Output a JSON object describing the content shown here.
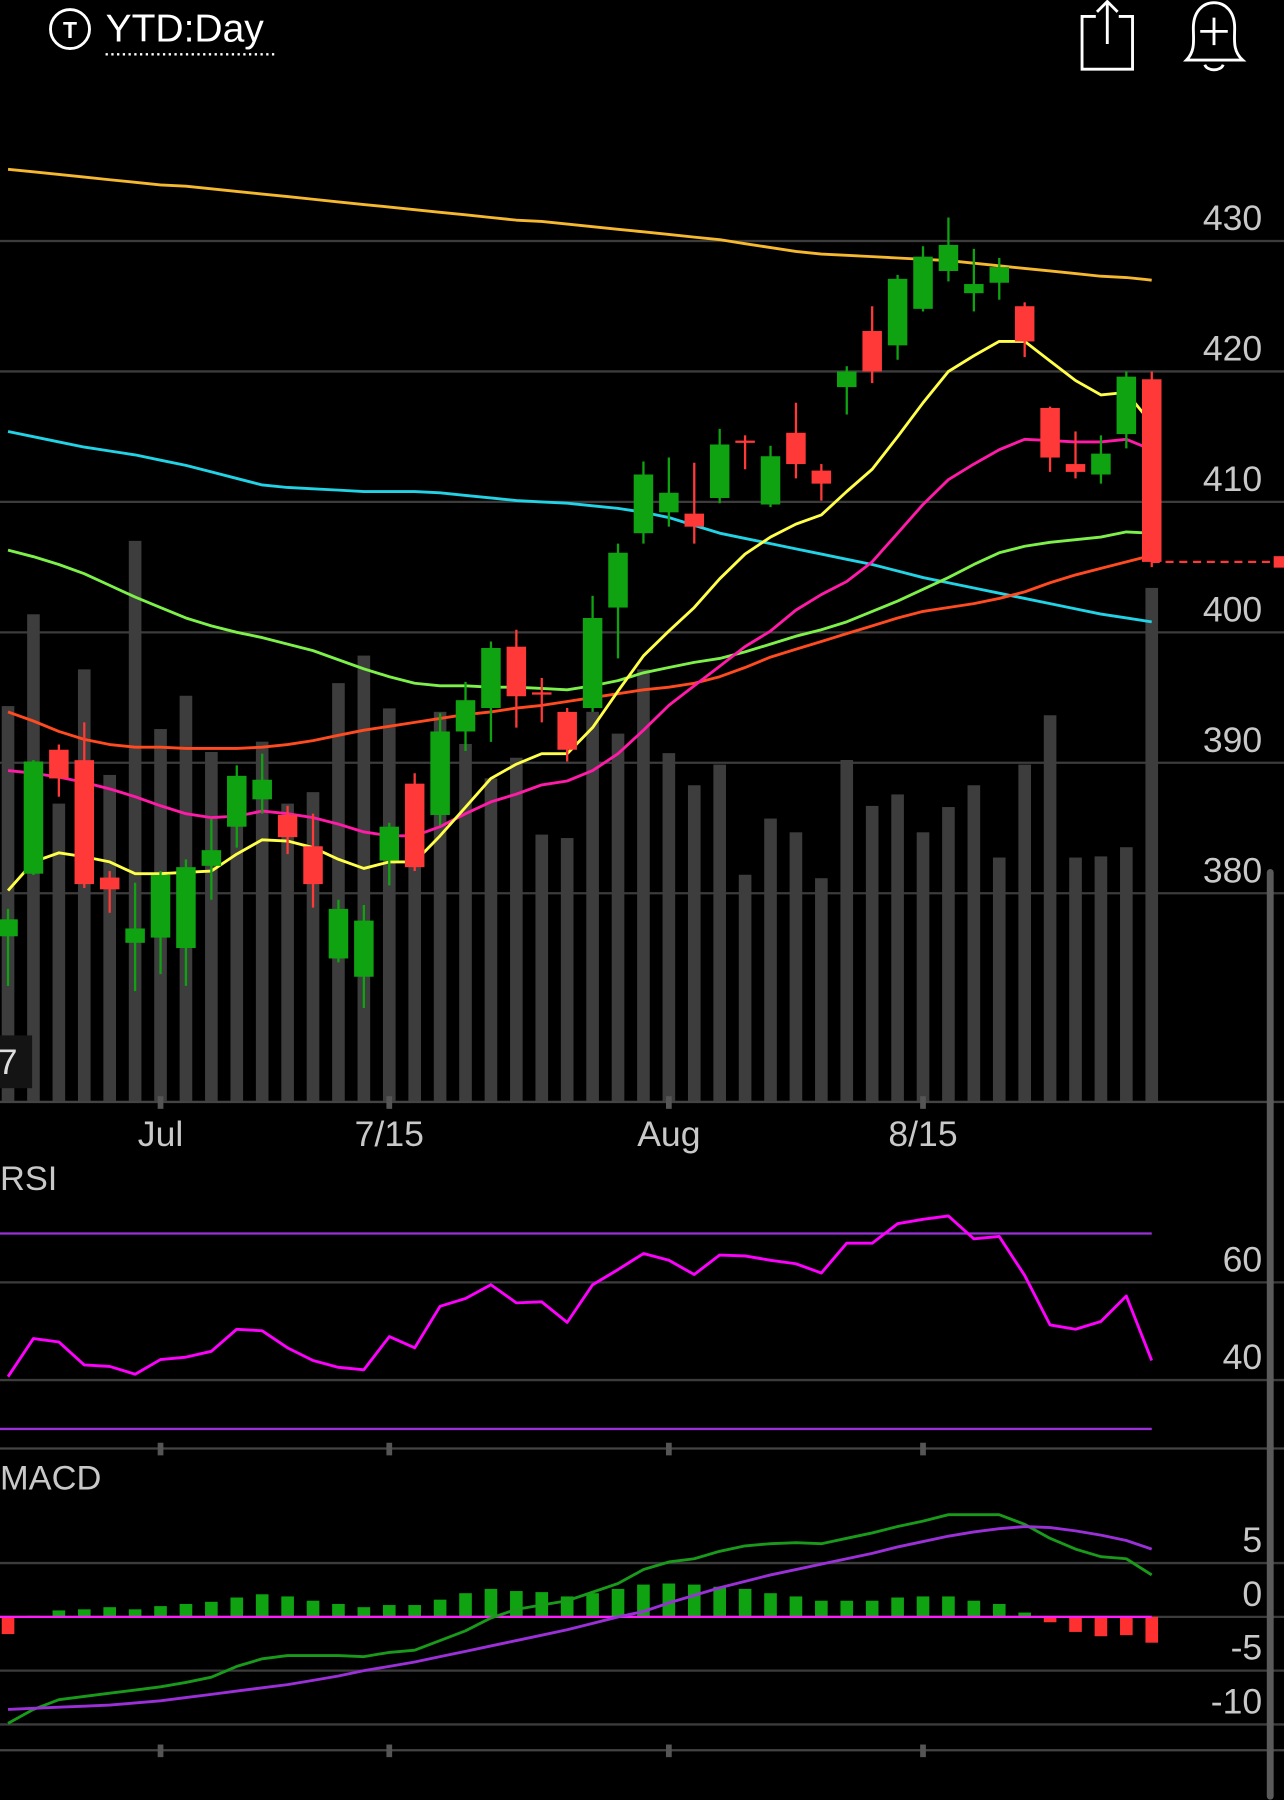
{
  "header": {
    "icon_letter": "T",
    "title": "YTD:Day"
  },
  "chart_data": [
    {
      "type": "candlestick",
      "categories": [
        null,
        null,
        null,
        null,
        null,
        null,
        "Jul",
        null,
        null,
        null,
        null,
        null,
        null,
        null,
        null,
        "7/15",
        null,
        null,
        null,
        null,
        null,
        null,
        null,
        null,
        null,
        null,
        "Aug",
        null,
        null,
        null,
        null,
        null,
        null,
        null,
        null,
        null,
        "8/15",
        null,
        null,
        null,
        null,
        null,
        null,
        null,
        null,
        null
      ],
      "open": [
        376.7,
        381.5,
        391.0,
        390.2,
        381.2,
        376.2,
        376.6,
        375.8,
        382.1,
        385.1,
        387.2,
        386.0,
        383.6,
        375.0,
        373.6,
        382.5,
        388.4,
        386.0,
        392.4,
        394.2,
        398.9,
        395.4,
        393.9,
        394.2,
        401.9,
        407.6,
        409.2,
        409.1,
        410.3,
        414.7,
        409.8,
        415.3,
        412.4,
        418.8,
        423.1,
        422.0,
        424.8,
        427.7,
        426.0,
        426.8,
        425.0,
        417.2,
        412.9,
        412.1,
        415.2,
        419.4
      ],
      "high": [
        378.8,
        390.2,
        391.4,
        393.1,
        381.7,
        380.8,
        381.7,
        382.6,
        385.7,
        389.8,
        390.7,
        386.7,
        386.1,
        379.5,
        379.1,
        385.4,
        389.2,
        393.8,
        396.2,
        399.3,
        400.2,
        396.5,
        394.2,
        402.8,
        406.8,
        413.1,
        413.4,
        413.0,
        415.6,
        415.1,
        414.3,
        417.6,
        412.9,
        420.4,
        425.0,
        427.4,
        429.6,
        431.8,
        429.4,
        428.7,
        425.3,
        417.3,
        415.4,
        415.1,
        420.0,
        420.0
      ],
      "low": [
        372.9,
        381.4,
        387.4,
        380.4,
        378.5,
        372.5,
        373.8,
        372.9,
        379.5,
        383.5,
        386.1,
        383.0,
        378.9,
        374.7,
        371.2,
        380.6,
        381.7,
        385.2,
        390.9,
        391.6,
        392.7,
        393.1,
        390.1,
        393.9,
        398.0,
        406.8,
        408.1,
        406.8,
        409.9,
        412.5,
        409.6,
        411.8,
        410.1,
        416.7,
        419.1,
        420.9,
        424.6,
        426.9,
        424.6,
        425.5,
        421.1,
        412.3,
        411.8,
        411.4,
        414.1,
        405.0
      ],
      "close": [
        378.0,
        390.1,
        388.8,
        380.7,
        380.3,
        377.3,
        381.4,
        382.0,
        383.3,
        389.0,
        388.7,
        384.3,
        380.7,
        378.8,
        377.9,
        385.1,
        382.0,
        392.4,
        394.8,
        398.8,
        395.1,
        395.3,
        391.0,
        401.1,
        406.1,
        412.1,
        410.7,
        408.1,
        414.4,
        414.6,
        413.5,
        412.9,
        411.4,
        420.0,
        420.0,
        427.1,
        428.8,
        429.7,
        426.7,
        428.0,
        422.3,
        413.4,
        412.3,
        413.7,
        419.6,
        405.4
      ],
      "volume": [
        345,
        425,
        260,
        377,
        285,
        489,
        325,
        354,
        305,
        260,
        314,
        260,
        270,
        365,
        389,
        343,
        240,
        340,
        312,
        282,
        300,
        233,
        230,
        340,
        321,
        377,
        304,
        276,
        294,
        198,
        247,
        235,
        195,
        298,
        258,
        268,
        235,
        257,
        276,
        213,
        294,
        337,
        213,
        214,
        222,
        448
      ],
      "up_color": "#0fa312",
      "down_color": "#ff3838",
      "volume_color": "#3d3d3d",
      "series": [
        {
          "color": "#f5b82e",
          "values": [
            435.5,
            435.3,
            435.1,
            434.9,
            434.7,
            434.5,
            434.3,
            434.2,
            434.0,
            433.8,
            433.6,
            433.4,
            433.2,
            433.0,
            432.8,
            432.6,
            432.4,
            432.2,
            432.0,
            431.8,
            431.6,
            431.5,
            431.3,
            431.1,
            430.9,
            430.7,
            430.5,
            430.3,
            430.1,
            429.8,
            429.5,
            429.2,
            429.0,
            428.9,
            428.8,
            428.7,
            428.6,
            428.5,
            428.3,
            428.1,
            427.9,
            427.7,
            427.5,
            427.3,
            427.2,
            427.0
          ]
        },
        {
          "color": "#22d3e6",
          "values": [
            415.4,
            415.0,
            414.6,
            414.2,
            413.9,
            413.6,
            413.2,
            412.8,
            412.3,
            411.8,
            411.3,
            411.1,
            411.0,
            410.9,
            410.8,
            410.8,
            410.8,
            410.7,
            410.5,
            410.3,
            410.1,
            410.0,
            409.9,
            409.7,
            409.5,
            409.2,
            408.8,
            408.2,
            407.6,
            407.2,
            406.8,
            406.4,
            406.0,
            405.6,
            405.2,
            404.7,
            404.2,
            403.8,
            403.4,
            403.0,
            402.6,
            402.2,
            401.8,
            401.4,
            401.1,
            400.8
          ]
        },
        {
          "color": "#7ef04a",
          "values": [
            406.3,
            405.8,
            405.2,
            404.5,
            403.6,
            402.7,
            401.9,
            401.1,
            400.5,
            400.0,
            399.6,
            399.1,
            398.6,
            397.9,
            397.2,
            396.6,
            396.1,
            395.9,
            395.9,
            395.8,
            395.8,
            395.7,
            395.6,
            395.9,
            396.3,
            396.9,
            397.3,
            397.7,
            398.0,
            398.5,
            399.1,
            399.7,
            400.2,
            400.8,
            401.6,
            402.4,
            403.3,
            404.2,
            405.2,
            406.1,
            406.6,
            406.9,
            407.1,
            407.3,
            407.7,
            407.6
          ]
        },
        {
          "color": "#ff4b1f",
          "values": [
            393.9,
            393.2,
            392.4,
            391.8,
            391.4,
            391.2,
            391.2,
            391.1,
            391.1,
            391.1,
            391.2,
            391.4,
            391.7,
            392.1,
            392.5,
            392.8,
            393.1,
            393.4,
            393.7,
            393.9,
            394.2,
            394.4,
            394.7,
            395.0,
            395.3,
            395.6,
            395.8,
            396.1,
            396.6,
            397.3,
            398.1,
            398.7,
            399.3,
            399.9,
            400.5,
            401.1,
            401.6,
            401.9,
            402.2,
            402.6,
            403.1,
            403.8,
            404.4,
            404.9,
            405.4,
            405.9
          ]
        },
        {
          "color": "#ff1aa8",
          "values": [
            389.4,
            389.2,
            388.9,
            388.5,
            388.0,
            387.4,
            386.7,
            386.1,
            385.8,
            385.9,
            386.3,
            386.1,
            385.8,
            385.3,
            384.7,
            384.4,
            384.4,
            385.1,
            386.1,
            387.0,
            387.6,
            388.3,
            388.6,
            389.4,
            390.7,
            392.5,
            394.4,
            395.9,
            397.4,
            398.9,
            400.1,
            401.7,
            402.9,
            403.9,
            405.4,
            407.6,
            409.8,
            411.7,
            412.9,
            414.0,
            414.8,
            414.7,
            414.6,
            414.6,
            414.8,
            414.0
          ]
        },
        {
          "color": "#ffff4a",
          "values": [
            380.2,
            382.4,
            383.1,
            382.8,
            382.4,
            381.5,
            381.5,
            381.6,
            381.7,
            383.0,
            384.1,
            384.0,
            383.5,
            382.6,
            381.9,
            382.4,
            382.4,
            384.4,
            386.6,
            388.8,
            389.9,
            390.7,
            390.7,
            392.7,
            395.5,
            398.2,
            400.1,
            401.9,
            404.1,
            406.0,
            407.3,
            408.3,
            409.0,
            410.8,
            412.5,
            415.0,
            417.6,
            420.0,
            421.2,
            422.3,
            422.3,
            420.8,
            419.3,
            418.2,
            418.4,
            416.0
          ]
        }
      ],
      "ylim": [
        364,
        440
      ],
      "yticks": [
        430,
        420,
        410,
        400,
        390,
        380
      ],
      "vlim": [
        0,
        500
      ],
      "volume_label": "7",
      "grid": true
    },
    {
      "type": "rsi",
      "title": "RSI",
      "color": "#ff00ff",
      "band_color": "#9b30d9",
      "values": [
        40.7,
        48.5,
        47.8,
        43.1,
        42.8,
        41.2,
        44.2,
        44.7,
        45.9,
        50.4,
        50.1,
        46.6,
        44.0,
        42.6,
        42.1,
        48.9,
        46.6,
        55.1,
        56.7,
        59.5,
        55.8,
        56.0,
        51.8,
        59.5,
        62.6,
        65.9,
        64.5,
        61.6,
        65.6,
        65.4,
        64.5,
        63.8,
        61.9,
        68.0,
        68.0,
        72.0,
        72.9,
        73.6,
        68.9,
        69.4,
        61.4,
        51.3,
        50.4,
        52.0,
        57.2,
        44.0
      ],
      "bands": [
        70,
        30
      ],
      "ylim": [
        26,
        84
      ],
      "yticks": [
        60,
        40
      ],
      "grid": true
    },
    {
      "type": "macd",
      "title": "MACD",
      "histogram": [
        -1.6,
        0.1,
        0.6,
        0.7,
        0.9,
        0.7,
        1.0,
        1.2,
        1.4,
        1.8,
        2.1,
        1.9,
        1.5,
        1.2,
        0.9,
        1.1,
        1.1,
        1.6,
        2.2,
        2.6,
        2.4,
        2.3,
        1.9,
        2.2,
        2.6,
        3.0,
        3.1,
        3.0,
        2.8,
        2.6,
        2.2,
        1.9,
        1.5,
        1.5,
        1.5,
        1.8,
        1.9,
        1.9,
        1.5,
        1.2,
        0.4,
        -0.5,
        -1.4,
        -1.8,
        -1.7,
        -2.4
      ],
      "up_color": "#0fa312",
      "down_color": "#ff3030",
      "zero_color": "#ff1aff",
      "series": [
        {
          "color": "#1a9a1a",
          "values": [
            -9.9,
            -8.6,
            -7.7,
            -7.4,
            -7.1,
            -6.8,
            -6.5,
            -6.1,
            -5.6,
            -4.6,
            -3.9,
            -3.6,
            -3.6,
            -3.6,
            -3.7,
            -3.3,
            -3.1,
            -2.2,
            -1.3,
            -0.1,
            0.7,
            1.1,
            1.5,
            2.3,
            3.1,
            4.4,
            5.1,
            5.4,
            6.1,
            6.6,
            6.8,
            6.9,
            6.8,
            7.3,
            7.8,
            8.4,
            8.9,
            9.5,
            9.5,
            9.5,
            8.6,
            7.3,
            6.3,
            5.6,
            5.4,
            3.9
          ]
        },
        {
          "color": "#9b30d9",
          "values": [
            -8.6,
            -8.5,
            -8.4,
            -8.3,
            -8.2,
            -8.0,
            -7.8,
            -7.5,
            -7.2,
            -6.9,
            -6.6,
            -6.3,
            -5.9,
            -5.5,
            -5.0,
            -4.6,
            -4.2,
            -3.7,
            -3.2,
            -2.7,
            -2.2,
            -1.7,
            -1.2,
            -0.6,
            0.0,
            0.5,
            1.3,
            2.0,
            2.7,
            3.3,
            3.9,
            4.4,
            4.9,
            5.4,
            5.9,
            6.5,
            7.0,
            7.5,
            7.9,
            8.2,
            8.4,
            8.3,
            8.0,
            7.6,
            7.1,
            6.3
          ]
        }
      ],
      "ylim": [
        -12.4,
        14.8
      ],
      "yticks": [
        5,
        0,
        -5,
        -10
      ],
      "grid": true
    }
  ]
}
